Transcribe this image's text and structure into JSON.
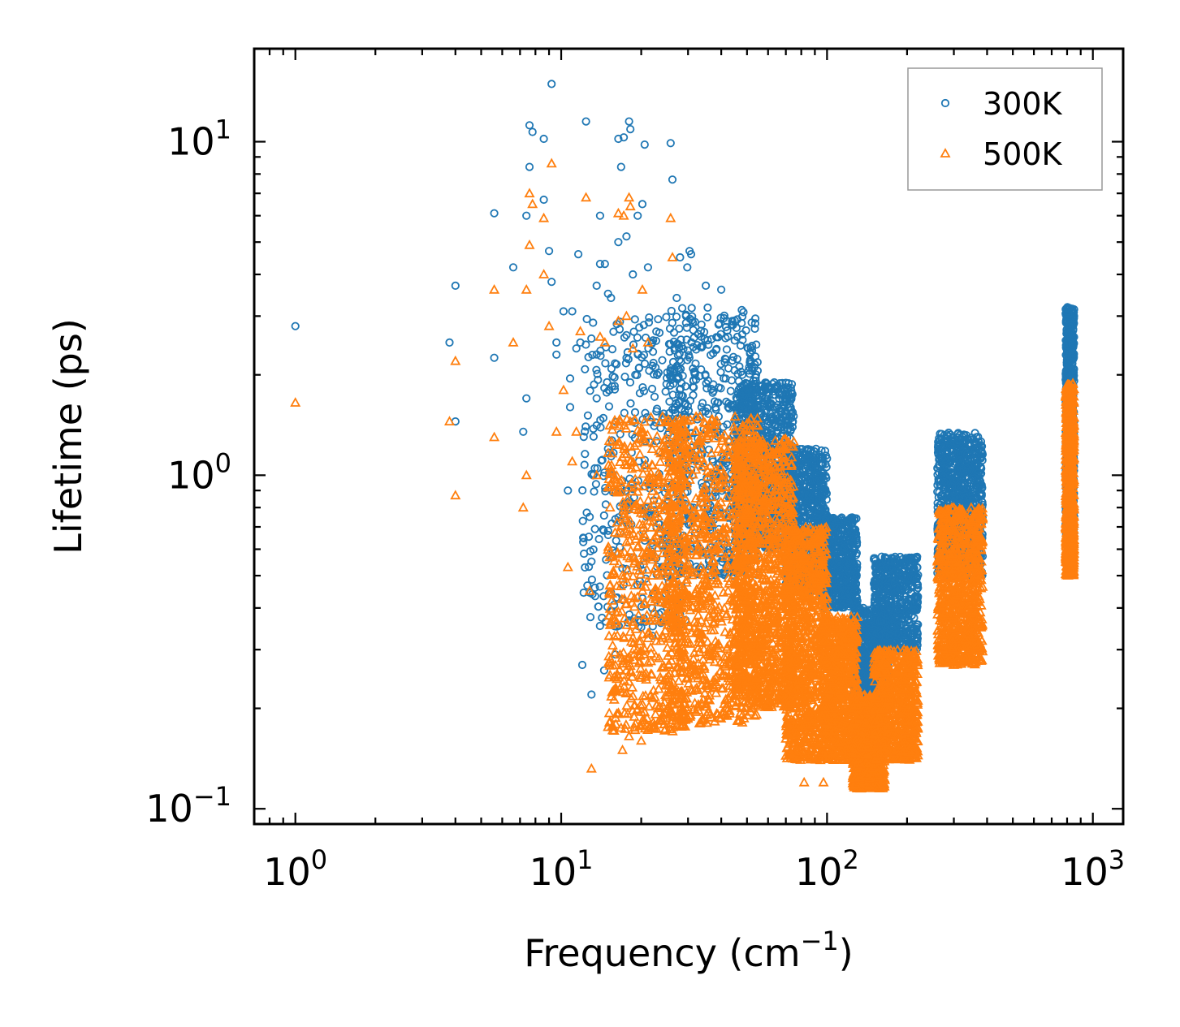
{
  "chart_data": {
    "type": "scatter",
    "xlabel": "Frequency (cm",
    "xlabel_sup": "−1",
    "xlabel_end": ")",
    "ylabel": "Lifetime (ps)",
    "xscale": "log",
    "yscale": "log",
    "xlim": [
      0.7,
      1300
    ],
    "ylim": [
      0.09,
      19
    ],
    "xticks": [
      {
        "base": "10",
        "exp": "0",
        "value": 1
      },
      {
        "base": "10",
        "exp": "1",
        "value": 10
      },
      {
        "base": "10",
        "exp": "2",
        "value": 100
      },
      {
        "base": "10",
        "exp": "3",
        "value": 1000
      }
    ],
    "yticks": [
      {
        "base": "10",
        "exp": "−1",
        "value": 0.1
      },
      {
        "base": "10",
        "exp": "0",
        "value": 1
      },
      {
        "base": "10",
        "exp": "1",
        "value": 10
      }
    ],
    "legend_position": "top-right",
    "series": [
      {
        "name": "300K",
        "color": "#1f77b4",
        "marker": "circle",
        "points": [
          [
            1.0,
            2.8
          ],
          [
            3.8,
            2.5
          ],
          [
            4.0,
            3.7
          ],
          [
            4.0,
            1.45
          ],
          [
            5.6,
            6.1
          ],
          [
            5.6,
            2.25
          ],
          [
            6.6,
            4.2
          ],
          [
            7.2,
            1.35
          ],
          [
            7.4,
            1.7
          ],
          [
            7.4,
            6.0
          ],
          [
            7.6,
            11.2
          ],
          [
            7.6,
            8.4
          ],
          [
            7.8,
            10.7
          ],
          [
            8.6,
            10.2
          ],
          [
            8.6,
            6.7
          ],
          [
            9.2,
            14.9
          ],
          [
            9.0,
            4.7
          ],
          [
            9.2,
            3.8
          ],
          [
            9.6,
            2.5
          ],
          [
            9.6,
            2.3
          ],
          [
            10.2,
            3.1
          ],
          [
            10.6,
            0.9
          ],
          [
            10.8,
            1.6
          ],
          [
            10.8,
            1.95
          ],
          [
            11.0,
            3.1
          ],
          [
            11.4,
            2.4
          ],
          [
            11.6,
            4.6
          ],
          [
            11.8,
            2.5
          ],
          [
            12.4,
            11.5
          ],
          [
            12.8,
            0.75
          ],
          [
            13.0,
            0.22
          ],
          [
            13.4,
            0.69
          ],
          [
            13.6,
            1.7
          ],
          [
            13.6,
            3.7
          ],
          [
            14.0,
            4.3
          ],
          [
            14.0,
            6.0
          ],
          [
            14.6,
            4.3
          ],
          [
            15.0,
            3.5
          ],
          [
            15.4,
            3.4
          ],
          [
            16.4,
            10.2
          ],
          [
            16.4,
            5.0
          ],
          [
            16.8,
            8.4
          ],
          [
            17.2,
            10.3
          ],
          [
            17.6,
            5.2
          ],
          [
            18.0,
            11.5
          ],
          [
            18.2,
            10.9
          ],
          [
            18.6,
            4.0
          ],
          [
            19.4,
            6.0
          ],
          [
            20.6,
            9.8
          ],
          [
            20.2,
            6.5
          ],
          [
            21.2,
            4.2
          ],
          [
            22.0,
            2.5
          ],
          [
            25.8,
            9.9
          ],
          [
            26.2,
            7.7
          ],
          [
            27.2,
            3.4
          ],
          [
            28.0,
            4.5
          ],
          [
            29.8,
            4.2
          ],
          [
            30.4,
            4.7
          ],
          [
            30.8,
            4.6
          ],
          [
            12.0,
            0.27
          ],
          [
            14.5,
            0.26
          ],
          [
            16.0,
            0.29
          ],
          [
            20.0,
            0.35
          ],
          [
            22.0,
            0.33
          ],
          [
            25.0,
            0.4
          ],
          [
            18.0,
            0.8
          ],
          [
            15.0,
            1.2
          ],
          [
            19.0,
            2.0
          ],
          [
            24.0,
            1.5
          ],
          [
            35.0,
            3.7
          ],
          [
            40.0,
            3.6
          ],
          [
            42.0,
            2.9
          ],
          [
            44.0,
            2.9
          ],
          [
            46.0,
            2.6
          ],
          [
            48.0,
            2.0
          ],
          [
            55.0,
            1.7
          ],
          [
            60.0,
            1.45
          ],
          [
            65.0,
            1.2
          ],
          [
            70.0,
            1.0
          ],
          [
            80.0,
            0.9
          ],
          [
            100.0,
            0.7
          ],
          [
            105.0,
            0.65
          ],
          [
            120.0,
            0.71
          ],
          [
            130.0,
            0.42
          ],
          [
            180.0,
            0.55
          ]
        ],
        "clusters": [
          {
            "x": [
              12,
              30
            ],
            "y": [
              0.35,
              3.0
            ],
            "n": 380
          },
          {
            "x": [
              25,
              55
            ],
            "y": [
              0.5,
              3.2
            ],
            "n": 600
          },
          {
            "x": [
              45,
              75
            ],
            "y": [
              0.6,
              1.9
            ],
            "n": 900
          },
          {
            "x": [
              70,
              100
            ],
            "y": [
              0.45,
              1.2
            ],
            "n": 800
          },
          {
            "x": [
              95,
              130
            ],
            "y": [
              0.4,
              0.75
            ],
            "n": 600
          },
          {
            "x": [
              125,
              170
            ],
            "y": [
              0.22,
              0.4
            ],
            "n": 600
          },
          {
            "x": [
              150,
              220
            ],
            "y": [
              0.3,
              0.57
            ],
            "n": 600
          },
          {
            "x": [
              260,
              385
            ],
            "y": [
              0.5,
              1.35
            ],
            "n": 900
          },
          {
            "x": [
              790,
              850
            ],
            "y": [
              0.65,
              3.2
            ],
            "n": 800
          }
        ]
      },
      {
        "name": "500K",
        "color": "#ff7f0e",
        "marker": "triangle",
        "points": [
          [
            1.0,
            1.65
          ],
          [
            3.8,
            1.45
          ],
          [
            4.0,
            2.2
          ],
          [
            4.0,
            0.87
          ],
          [
            5.6,
            3.6
          ],
          [
            5.6,
            1.3
          ],
          [
            6.6,
            2.5
          ],
          [
            7.2,
            0.8
          ],
          [
            7.4,
            1.0
          ],
          [
            7.4,
            3.6
          ],
          [
            7.6,
            7.0
          ],
          [
            7.6,
            4.9
          ],
          [
            7.8,
            6.5
          ],
          [
            8.6,
            5.9
          ],
          [
            8.6,
            4.0
          ],
          [
            9.2,
            8.6
          ],
          [
            9.0,
            2.8
          ],
          [
            9.6,
            1.35
          ],
          [
            10.2,
            1.8
          ],
          [
            10.6,
            0.53
          ],
          [
            11.0,
            1.1
          ],
          [
            11.4,
            1.35
          ],
          [
            11.8,
            2.7
          ],
          [
            12.4,
            6.8
          ],
          [
            12.8,
            0.45
          ],
          [
            13.0,
            0.132
          ],
          [
            13.6,
            1.0
          ],
          [
            14.0,
            2.6
          ],
          [
            14.6,
            2.5
          ],
          [
            16.4,
            6.1
          ],
          [
            16.4,
            2.9
          ],
          [
            17.2,
            6.0
          ],
          [
            17.6,
            3.0
          ],
          [
            18.0,
            6.8
          ],
          [
            18.2,
            6.4
          ],
          [
            18.6,
            2.4
          ],
          [
            20.2,
            3.6
          ],
          [
            21.2,
            2.5
          ],
          [
            25.8,
            5.9
          ],
          [
            26.2,
            4.5
          ],
          [
            20.0,
            0.16
          ],
          [
            18.0,
            0.165
          ],
          [
            17.0,
            0.15
          ],
          [
            25.0,
            0.2
          ],
          [
            82.0,
            0.12
          ],
          [
            97.0,
            0.12
          ]
        ],
        "clusters": [
          {
            "x": [
              15,
              30
            ],
            "y": [
              0.17,
              1.5
            ],
            "n": 700
          },
          {
            "x": [
              25,
              55
            ],
            "y": [
              0.18,
              1.5
            ],
            "n": 900
          },
          {
            "x": [
              45,
              75
            ],
            "y": [
              0.2,
              1.3
            ],
            "n": 1200
          },
          {
            "x": [
              70,
              100
            ],
            "y": [
              0.14,
              0.7
            ],
            "n": 900
          },
          {
            "x": [
              95,
              130
            ],
            "y": [
              0.14,
              0.38
            ],
            "n": 800
          },
          {
            "x": [
              125,
              165
            ],
            "y": [
              0.115,
              0.22
            ],
            "n": 700
          },
          {
            "x": [
              150,
              220
            ],
            "y": [
              0.14,
              0.3
            ],
            "n": 700
          },
          {
            "x": [
              260,
              385
            ],
            "y": [
              0.27,
              0.8
            ],
            "n": 900
          },
          {
            "x": [
              790,
              850
            ],
            "y": [
              0.5,
              1.9
            ],
            "n": 800
          }
        ]
      }
    ]
  }
}
